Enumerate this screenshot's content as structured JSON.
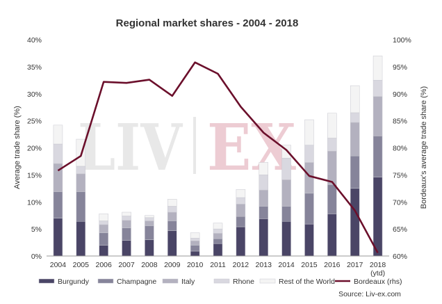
{
  "chart_data": {
    "type": "bar",
    "stacked": true,
    "title": "Regional market shares - 2004 - 2018",
    "ylabel": "Average trade share (%)",
    "y2label": "Bordeaux's average trade share (%)",
    "ylim": [
      0,
      40
    ],
    "y2lim": [
      60,
      100
    ],
    "yticks": [
      "0%",
      "5%",
      "10%",
      "15%",
      "20%",
      "25%",
      "30%",
      "35%",
      "40%"
    ],
    "y2ticks": [
      "60%",
      "65%",
      "70%",
      "75%",
      "80%",
      "85%",
      "90%",
      "95%",
      "100%"
    ],
    "categories": [
      "2004",
      "2005",
      "2006",
      "2007",
      "2008",
      "2009",
      "2010",
      "2011",
      "2012",
      "2013",
      "2014",
      "2015",
      "2016",
      "2017",
      "2018"
    ],
    "category_sublabels": [
      "",
      "",
      "",
      "",
      "",
      "",
      "",
      "",
      "",
      "",
      "",
      "",
      "",
      "",
      "(ytd)"
    ],
    "series": [
      {
        "name": "Burgundy",
        "color": "#4a4566",
        "values": [
          7.0,
          6.4,
          2.0,
          2.9,
          3.0,
          4.7,
          0.9,
          2.3,
          5.4,
          6.9,
          6.4,
          5.9,
          7.8,
          12.5,
          14.6
        ]
      },
      {
        "name": "Champagne",
        "color": "#86849a",
        "values": [
          4.9,
          5.5,
          2.3,
          2.3,
          2.6,
          1.8,
          1.1,
          0.9,
          1.9,
          2.3,
          2.8,
          5.7,
          5.4,
          6.0,
          7.6
        ]
      },
      {
        "name": "Italy",
        "color": "#b3b1bf",
        "values": [
          5.2,
          3.3,
          1.5,
          1.4,
          0.9,
          1.6,
          0.8,
          1.0,
          2.3,
          3.0,
          4.9,
          5.7,
          6.2,
          6.2,
          7.3
        ]
      },
      {
        "name": "Rhone",
        "color": "#d9d8e0",
        "values": [
          3.6,
          1.4,
          0.7,
          0.8,
          0.6,
          1.1,
          0.5,
          0.8,
          1.2,
          2.8,
          4.0,
          3.2,
          2.4,
          1.8,
          3.0
        ]
      },
      {
        "name": "Rest of the World",
        "color": "#f4f4f4",
        "values": [
          3.5,
          5.0,
          1.3,
          0.7,
          0.4,
          1.3,
          1.0,
          1.1,
          1.5,
          2.3,
          2.4,
          4.7,
          4.6,
          5.0,
          4.5
        ]
      }
    ],
    "line_series": {
      "name": "Bordeaux (rhs)",
      "color": "#6b0f2b",
      "axis": "right",
      "values": [
        75.8,
        78.5,
        92.2,
        92.0,
        92.6,
        89.6,
        95.8,
        93.7,
        87.6,
        82.8,
        79.6,
        74.8,
        73.7,
        68.4,
        60.6
      ]
    },
    "legend": {
      "position": "bottom"
    },
    "grid": false,
    "source": "Source: Liv-ex.com",
    "watermark": "LIV|EX"
  }
}
